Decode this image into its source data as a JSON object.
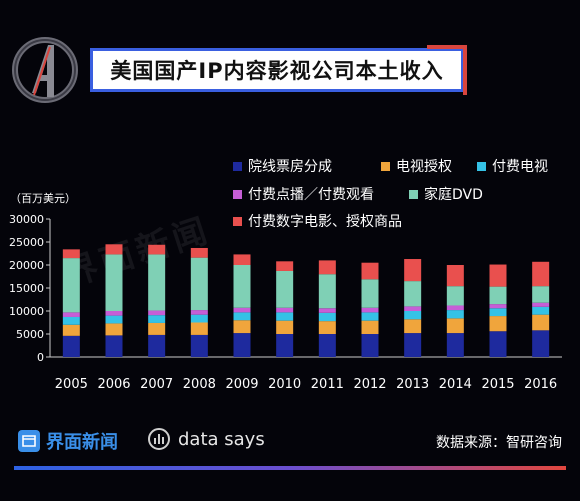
{
  "title": "美国国产IP内容影视公司本土收入",
  "source": "数据来源：智研咨询",
  "brand": {
    "name": "界面新闻",
    "datasays": "data says"
  },
  "watermark": "界面新闻",
  "chart_data": {
    "type": "bar",
    "stacked": true,
    "unit_label": "（百万美元）",
    "categories": [
      "2005",
      "2006",
      "2007",
      "2008",
      "2009",
      "2010",
      "2011",
      "2012",
      "2013",
      "2014",
      "2015",
      "2016"
    ],
    "ylim": [
      0,
      30000
    ],
    "yticks": [
      0,
      5000,
      10000,
      15000,
      20000,
      25000,
      30000
    ],
    "yticks_labels": [
      "0",
      "5000",
      "10000",
      "15000",
      "20000",
      "25000",
      "30000"
    ],
    "legend_position": "top-right",
    "series": [
      {
        "name": "院线票房分成",
        "color": "#1e2a9e",
        "values": [
          4600,
          4700,
          4800,
          4800,
          5200,
          5000,
          5000,
          5000,
          5200,
          5200,
          5600,
          5800
        ]
      },
      {
        "name": "电视授权",
        "color": "#f0a53c",
        "values": [
          2400,
          2600,
          2600,
          2700,
          2800,
          2900,
          2800,
          2900,
          3000,
          3200,
          3300,
          3400
        ]
      },
      {
        "name": "付费电视",
        "color": "#35c2e6",
        "values": [
          1700,
          1700,
          1700,
          1700,
          1700,
          1800,
          1800,
          1800,
          1800,
          1800,
          1700,
          1700
        ]
      },
      {
        "name": "付费点播／付费观看",
        "color": "#c65ed6",
        "values": [
          1000,
          1000,
          1000,
          1000,
          1000,
          1000,
          1000,
          1000,
          1000,
          1000,
          900,
          900
        ]
      },
      {
        "name": "家庭DVD",
        "color": "#7fd0b5",
        "values": [
          11800,
          12300,
          12200,
          11400,
          9300,
          8000,
          7400,
          6200,
          5500,
          4200,
          3800,
          3600
        ]
      },
      {
        "name": "付费数字电影、授权商品",
        "color": "#e9504e",
        "values": [
          1900,
          2200,
          2100,
          2100,
          2300,
          2100,
          3000,
          3600,
          4800,
          4600,
          4800,
          5300
        ]
      }
    ]
  }
}
